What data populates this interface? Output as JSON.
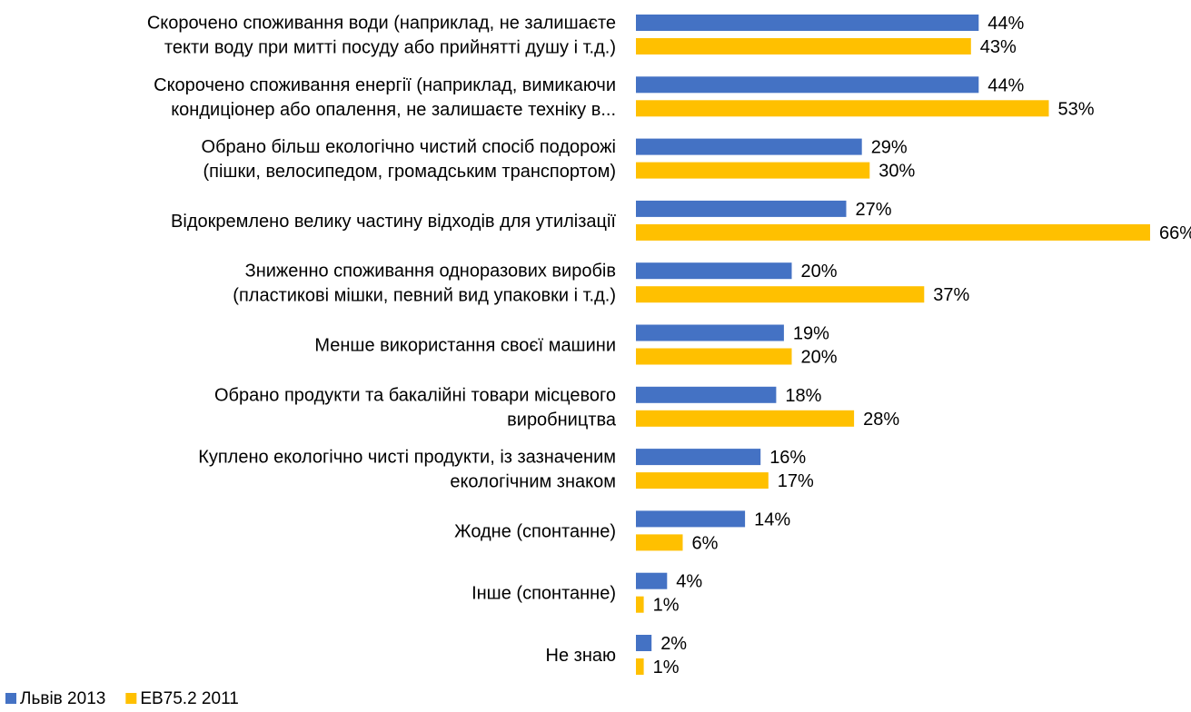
{
  "chart_data": {
    "type": "bar",
    "orientation": "horizontal",
    "title": "",
    "xlabel": "",
    "ylabel": "",
    "xlim": [
      0,
      66
    ],
    "grid": false,
    "value_suffix": "%",
    "legend_position": "bottom-left",
    "categories": [
      [
        "Скорочено споживання води (наприклад, не залишаєте",
        "текти воду при митті посуду або прийнятті душу і т.д.)"
      ],
      [
        "Скорочено споживання енергії (наприклад, вимикаючи",
        "кондиціонер або опалення, не залишаєте техніку в..."
      ],
      [
        "Обрано більш екологічно чистий спосіб подорожі",
        "(пішки, велосипедом, громадським транспортом)"
      ],
      [
        "Відокремлено велику частину відходів для утилізації"
      ],
      [
        "Зниженно споживання одноразових виробів",
        "(пластикові мішки, певний вид упаковки і т.д.)"
      ],
      [
        "Менше використання своєї машини"
      ],
      [
        "Обрано продукти та бакалійні товари місцевого",
        "виробництва"
      ],
      [
        "Куплено екологічно чисті продукти, із зазначеним",
        "екологічним знаком"
      ],
      [
        "Жодне (спонтанне)"
      ],
      [
        "Інше (спонтанне)"
      ],
      [
        "Не знаю"
      ]
    ],
    "series": [
      {
        "name": "Львів 2013",
        "color": "#4472C4",
        "values": [
          44,
          44,
          29,
          27,
          20,
          19,
          18,
          16,
          14,
          4,
          2
        ]
      },
      {
        "name": "EB75.2 2011",
        "color": "#FFC000",
        "values": [
          43,
          53,
          30,
          66,
          37,
          20,
          28,
          17,
          6,
          1,
          1
        ]
      }
    ]
  }
}
